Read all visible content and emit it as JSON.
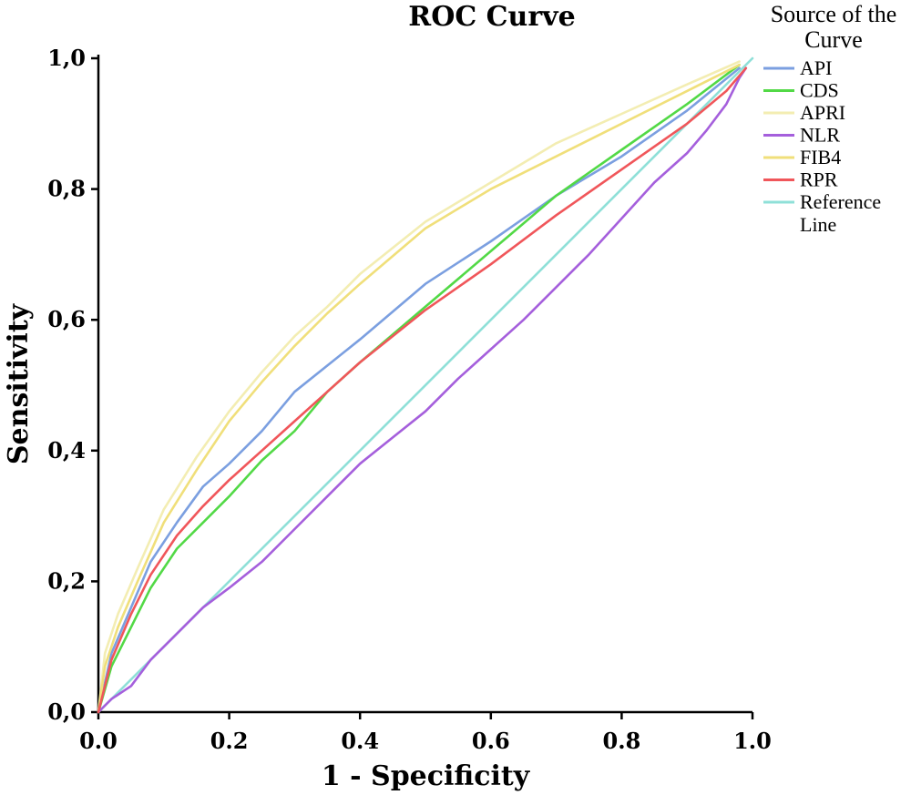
{
  "chart_data": {
    "type": "line",
    "title": "ROC Curve",
    "xlabel": "1 - Specificity",
    "ylabel": "Sensitivity",
    "xlim": [
      0,
      1
    ],
    "ylim": [
      0,
      1
    ],
    "x_ticks": [
      "0.0",
      "0.2",
      "0.4",
      "0.6",
      "0.8",
      "1.0"
    ],
    "y_ticks": [
      "0,0",
      "0,2",
      "0,4",
      "0,6",
      "0,8",
      "1,0"
    ],
    "grid": false,
    "legend_position": "top-right",
    "legend_title": [
      "Source of the",
      "Curve"
    ],
    "series": [
      {
        "name": "API",
        "color": "#7b9fe0",
        "points": [
          [
            0,
            0
          ],
          [
            0.02,
            0.09
          ],
          [
            0.05,
            0.16
          ],
          [
            0.08,
            0.23
          ],
          [
            0.12,
            0.29
          ],
          [
            0.16,
            0.345
          ],
          [
            0.2,
            0.38
          ],
          [
            0.25,
            0.43
          ],
          [
            0.3,
            0.49
          ],
          [
            0.4,
            0.57
          ],
          [
            0.5,
            0.655
          ],
          [
            0.6,
            0.72
          ],
          [
            0.7,
            0.79
          ],
          [
            0.8,
            0.85
          ],
          [
            0.9,
            0.92
          ],
          [
            0.98,
            0.985
          ]
        ]
      },
      {
        "name": "CDS",
        "color": "#52d946",
        "points": [
          [
            0,
            0
          ],
          [
            0.02,
            0.07
          ],
          [
            0.05,
            0.13
          ],
          [
            0.08,
            0.19
          ],
          [
            0.12,
            0.25
          ],
          [
            0.16,
            0.29
          ],
          [
            0.2,
            0.33
          ],
          [
            0.25,
            0.385
          ],
          [
            0.3,
            0.43
          ],
          [
            0.35,
            0.49
          ],
          [
            0.4,
            0.535
          ],
          [
            0.5,
            0.62
          ],
          [
            0.6,
            0.705
          ],
          [
            0.7,
            0.79
          ],
          [
            0.8,
            0.86
          ],
          [
            0.9,
            0.93
          ],
          [
            0.98,
            0.99
          ]
        ]
      },
      {
        "name": "APRI",
        "color": "#f3edb2",
        "points": [
          [
            0,
            0
          ],
          [
            0.01,
            0.09
          ],
          [
            0.03,
            0.15
          ],
          [
            0.06,
            0.22
          ],
          [
            0.1,
            0.31
          ],
          [
            0.15,
            0.39
          ],
          [
            0.2,
            0.46
          ],
          [
            0.25,
            0.52
          ],
          [
            0.3,
            0.575
          ],
          [
            0.35,
            0.62
          ],
          [
            0.4,
            0.67
          ],
          [
            0.5,
            0.75
          ],
          [
            0.6,
            0.81
          ],
          [
            0.7,
            0.87
          ],
          [
            0.8,
            0.915
          ],
          [
            0.9,
            0.96
          ],
          [
            0.98,
            0.995
          ]
        ]
      },
      {
        "name": "NLR",
        "color": "#a55fdc",
        "points": [
          [
            0,
            0
          ],
          [
            0.02,
            0.02
          ],
          [
            0.05,
            0.04
          ],
          [
            0.08,
            0.08
          ],
          [
            0.12,
            0.12
          ],
          [
            0.16,
            0.16
          ],
          [
            0.2,
            0.19
          ],
          [
            0.25,
            0.23
          ],
          [
            0.3,
            0.28
          ],
          [
            0.35,
            0.33
          ],
          [
            0.4,
            0.38
          ],
          [
            0.45,
            0.42
          ],
          [
            0.5,
            0.46
          ],
          [
            0.55,
            0.51
          ],
          [
            0.6,
            0.555
          ],
          [
            0.65,
            0.6
          ],
          [
            0.7,
            0.65
          ],
          [
            0.75,
            0.7
          ],
          [
            0.8,
            0.755
          ],
          [
            0.85,
            0.81
          ],
          [
            0.9,
            0.855
          ],
          [
            0.93,
            0.89
          ],
          [
            0.96,
            0.93
          ],
          [
            0.98,
            0.97
          ],
          [
            0.99,
            0.985
          ]
        ]
      },
      {
        "name": "FIB4",
        "color": "#f0df7a",
        "points": [
          [
            0,
            0
          ],
          [
            0.01,
            0.07
          ],
          [
            0.03,
            0.13
          ],
          [
            0.06,
            0.2
          ],
          [
            0.1,
            0.29
          ],
          [
            0.15,
            0.37
          ],
          [
            0.2,
            0.445
          ],
          [
            0.25,
            0.505
          ],
          [
            0.3,
            0.56
          ],
          [
            0.35,
            0.61
          ],
          [
            0.4,
            0.655
          ],
          [
            0.5,
            0.74
          ],
          [
            0.6,
            0.8
          ],
          [
            0.7,
            0.85
          ],
          [
            0.8,
            0.9
          ],
          [
            0.9,
            0.95
          ],
          [
            0.98,
            0.99
          ]
        ]
      },
      {
        "name": "RPR",
        "color": "#f0565a",
        "points": [
          [
            0,
            0
          ],
          [
            0.02,
            0.08
          ],
          [
            0.05,
            0.15
          ],
          [
            0.08,
            0.21
          ],
          [
            0.12,
            0.27
          ],
          [
            0.16,
            0.315
          ],
          [
            0.2,
            0.355
          ],
          [
            0.25,
            0.4
          ],
          [
            0.3,
            0.445
          ],
          [
            0.35,
            0.49
          ],
          [
            0.4,
            0.535
          ],
          [
            0.5,
            0.615
          ],
          [
            0.6,
            0.685
          ],
          [
            0.7,
            0.76
          ],
          [
            0.8,
            0.83
          ],
          [
            0.9,
            0.9
          ],
          [
            0.96,
            0.95
          ],
          [
            0.99,
            0.985
          ]
        ]
      },
      {
        "name": "Reference Line",
        "color": "#8fe0d8",
        "points": [
          [
            0,
            0
          ],
          [
            1,
            1
          ]
        ]
      }
    ]
  }
}
